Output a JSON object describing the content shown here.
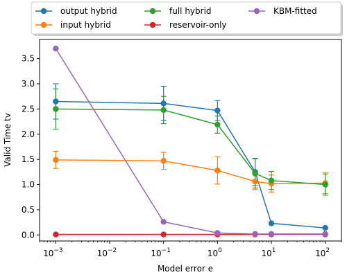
{
  "chart_data": {
    "type": "line",
    "xscale": "log",
    "xlim": [
      0.0005,
      200
    ],
    "ylim": [
      -0.12,
      3.88
    ],
    "xlabel": "Model error e",
    "ylabel": "Valid Time tv",
    "yticks": [
      "0.0",
      "0.5",
      "1.0",
      "1.5",
      "2.0",
      "2.5",
      "3.0",
      "3.5"
    ],
    "ytick_values": [
      0,
      0.5,
      1.0,
      1.5,
      2.0,
      2.5,
      3.0,
      3.5
    ],
    "xticks": [
      {
        "base": "10",
        "exp": "−3",
        "value": 0.001
      },
      {
        "base": "10",
        "exp": "−2",
        "value": 0.01
      },
      {
        "base": "10",
        "exp": "−1",
        "value": 0.1
      },
      {
        "base": "10",
        "exp": "0",
        "value": 1
      },
      {
        "base": "10",
        "exp": "1",
        "value": 10
      },
      {
        "base": "10",
        "exp": "2",
        "value": 100
      }
    ],
    "legend_position": "top, above plot, 3 columns",
    "grid": false,
    "series": [
      {
        "name": "output hybrid",
        "color": "#1f77b4",
        "x": [
          0.001,
          0.1,
          1,
          5,
          10,
          100
        ],
        "y": [
          2.65,
          2.61,
          2.47,
          1.25,
          0.23,
          0.14
        ],
        "err": [
          0.35,
          0.34,
          0.2,
          0.27,
          null,
          null
        ]
      },
      {
        "name": "input hybrid",
        "color": "#ff7f0e",
        "x": [
          0.001,
          0.1,
          1,
          5,
          10,
          100
        ],
        "y": [
          1.49,
          1.47,
          1.28,
          1.06,
          1.02,
          1.03
        ],
        "err": [
          0.17,
          0.17,
          0.27,
          0.16,
          0.17,
          0.21
        ]
      },
      {
        "name": "full hybrid",
        "color": "#2ca02c",
        "x": [
          0.001,
          0.1,
          1,
          5,
          10,
          100
        ],
        "y": [
          2.5,
          2.48,
          2.19,
          1.22,
          1.08,
          1.0
        ],
        "err": [
          0.4,
          0.27,
          0.17,
          0.29,
          0.18,
          0.21
        ]
      },
      {
        "name": "reservoir-only",
        "color": "#d62728",
        "x": [
          0.001,
          0.1,
          1,
          5,
          10,
          100
        ],
        "y": [
          0.01,
          0.01,
          0.01,
          0.01,
          0.01,
          0.01
        ],
        "err": [
          null,
          null,
          null,
          null,
          null,
          null
        ]
      },
      {
        "name": "KBM-fitted",
        "color": "#9467bd",
        "x": [
          0.001,
          0.1,
          1,
          5,
          10,
          100
        ],
        "y": [
          3.7,
          0.26,
          0.04,
          0.02,
          0.02,
          0.02
        ],
        "err": [
          null,
          null,
          null,
          null,
          null,
          null
        ]
      }
    ]
  }
}
